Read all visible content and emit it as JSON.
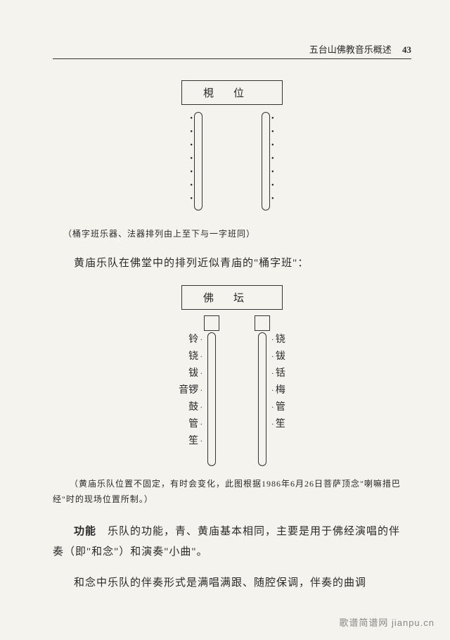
{
  "header": {
    "title": "五台山佛教音乐概述",
    "page": "43"
  },
  "diagram1": {
    "box": "梘位",
    "left_dots": [
      "●",
      "●",
      "●",
      "●",
      "●",
      "●",
      "●"
    ],
    "right_dots": [
      "●",
      "●",
      "●",
      "●",
      "●",
      "●",
      "●"
    ],
    "caption": "（桶字班乐器、法器排列由上至下与一字班同）"
  },
  "para1": "黄庙乐队在佛堂中的排列近似青庙的\"桶字班\"：",
  "diagram2": {
    "box": "佛坛",
    "left_labels": [
      "铃",
      "铙",
      "钹",
      "音锣",
      "鼓",
      "管",
      "笙"
    ],
    "right_labels": [
      "铙",
      "钹",
      "铦",
      "梅",
      "管",
      "笙"
    ],
    "caption": "（黄庙乐队位置不固定，有时会变化，此图根据1986年6月26日菩萨顶念\"喇嘛措巴经\"时的现场位置所制。）"
  },
  "para2_label": "功能",
  "para2": "　乐队的功能，青、黄庙基本相同，主要是用于佛经演唱的伴奏（即\"和念\"）和演奏\"小曲\"。",
  "para3": "和念中乐队的伴奏形式是满唱满跟、随腔保调，伴奏的曲调",
  "watermark": "歌谱简谱网 jianpu.cn"
}
